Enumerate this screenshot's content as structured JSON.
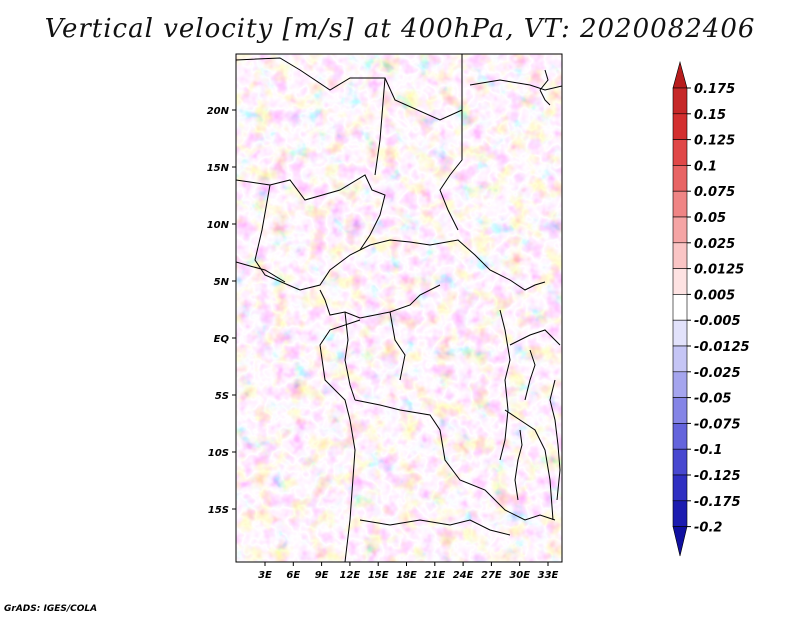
{
  "title": "Vertical velocity [m/s] at 400hPa, VT: 2020082406",
  "credit": "GrADS: IGES/COLA",
  "map": {
    "lat_ticks": [
      "20N",
      "15N",
      "10N",
      "5N",
      "EQ",
      "5S",
      "10S",
      "15S"
    ],
    "lon_ticks": [
      "3E",
      "6E",
      "9E",
      "12E",
      "15E",
      "18E",
      "21E",
      "24E",
      "27E",
      "30E",
      "33E"
    ]
  },
  "colorbar": {
    "labels": [
      "0.175",
      "0.15",
      "0.125",
      "0.1",
      "0.075",
      "0.05",
      "0.025",
      "0.0125",
      "0.005",
      "-0.005",
      "-0.0125",
      "-0.025",
      "-0.05",
      "-0.075",
      "-0.1",
      "-0.125",
      "-0.175",
      "-0.2"
    ],
    "colors": [
      "#b71c1c",
      "#c62828",
      "#d32f2f",
      "#e04848",
      "#e86464",
      "#ef8585",
      "#f5a5a5",
      "#fac5c5",
      "#fde2e2",
      "#ffffff",
      "#e2e2fb",
      "#c5c5f5",
      "#a5a5ee",
      "#8585e6",
      "#6464dc",
      "#4848d0",
      "#2f2fc2",
      "#1c1cb0",
      "#1010a0"
    ]
  }
}
